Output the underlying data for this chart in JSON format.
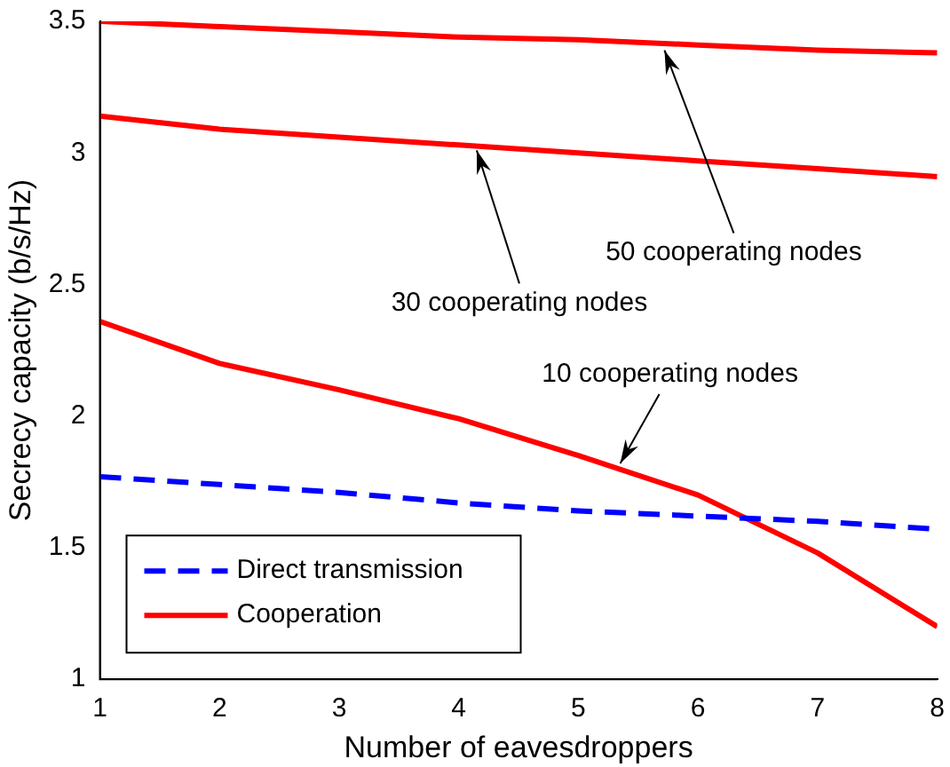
{
  "chart_data": {
    "type": "line",
    "xlabel": "Number of eavesdroppers",
    "ylabel": "Secrecy capacity (b/s/Hz)",
    "x": [
      1,
      2,
      3,
      4,
      5,
      6,
      7,
      8
    ],
    "series": [
      {
        "name": "Direct transmission",
        "color": "#0000ff",
        "line_style": "dashed",
        "values": [
          1.77,
          1.74,
          1.71,
          1.67,
          1.64,
          1.62,
          1.6,
          1.57
        ]
      },
      {
        "name": "Cooperation",
        "color": "#ff0000",
        "values": [
          2.36,
          2.2,
          2.1,
          1.99,
          1.85,
          1.7,
          1.48,
          1.2
        ]
      },
      {
        "color": "#ff0000",
        "values": [
          3.14,
          3.09,
          3.06,
          3.03,
          3.0,
          2.97,
          2.94,
          2.91
        ]
      },
      {
        "color": "#ff0000",
        "values": [
          3.5,
          3.48,
          3.46,
          3.44,
          3.43,
          3.41,
          3.39,
          3.38
        ]
      }
    ],
    "xlim": [
      1,
      8
    ],
    "xticks": [
      1,
      2,
      3,
      4,
      5,
      6,
      7,
      8
    ],
    "ylim": [
      1,
      3.5
    ],
    "yticks": [
      1,
      1.5,
      2,
      2.5,
      3,
      3.5
    ],
    "grid": false,
    "legend": "bottom left",
    "marker": "none",
    "annotations": [
      {
        "text": "50 cooperating nodes",
        "x": 5.72,
        "y": 3.41
      },
      {
        "text": "30 cooperating nodes",
        "x": 4.15,
        "y": 3.03
      },
      {
        "text": "10 cooperating nodes",
        "x": 5.35,
        "y": 1.8
      }
    ]
  }
}
